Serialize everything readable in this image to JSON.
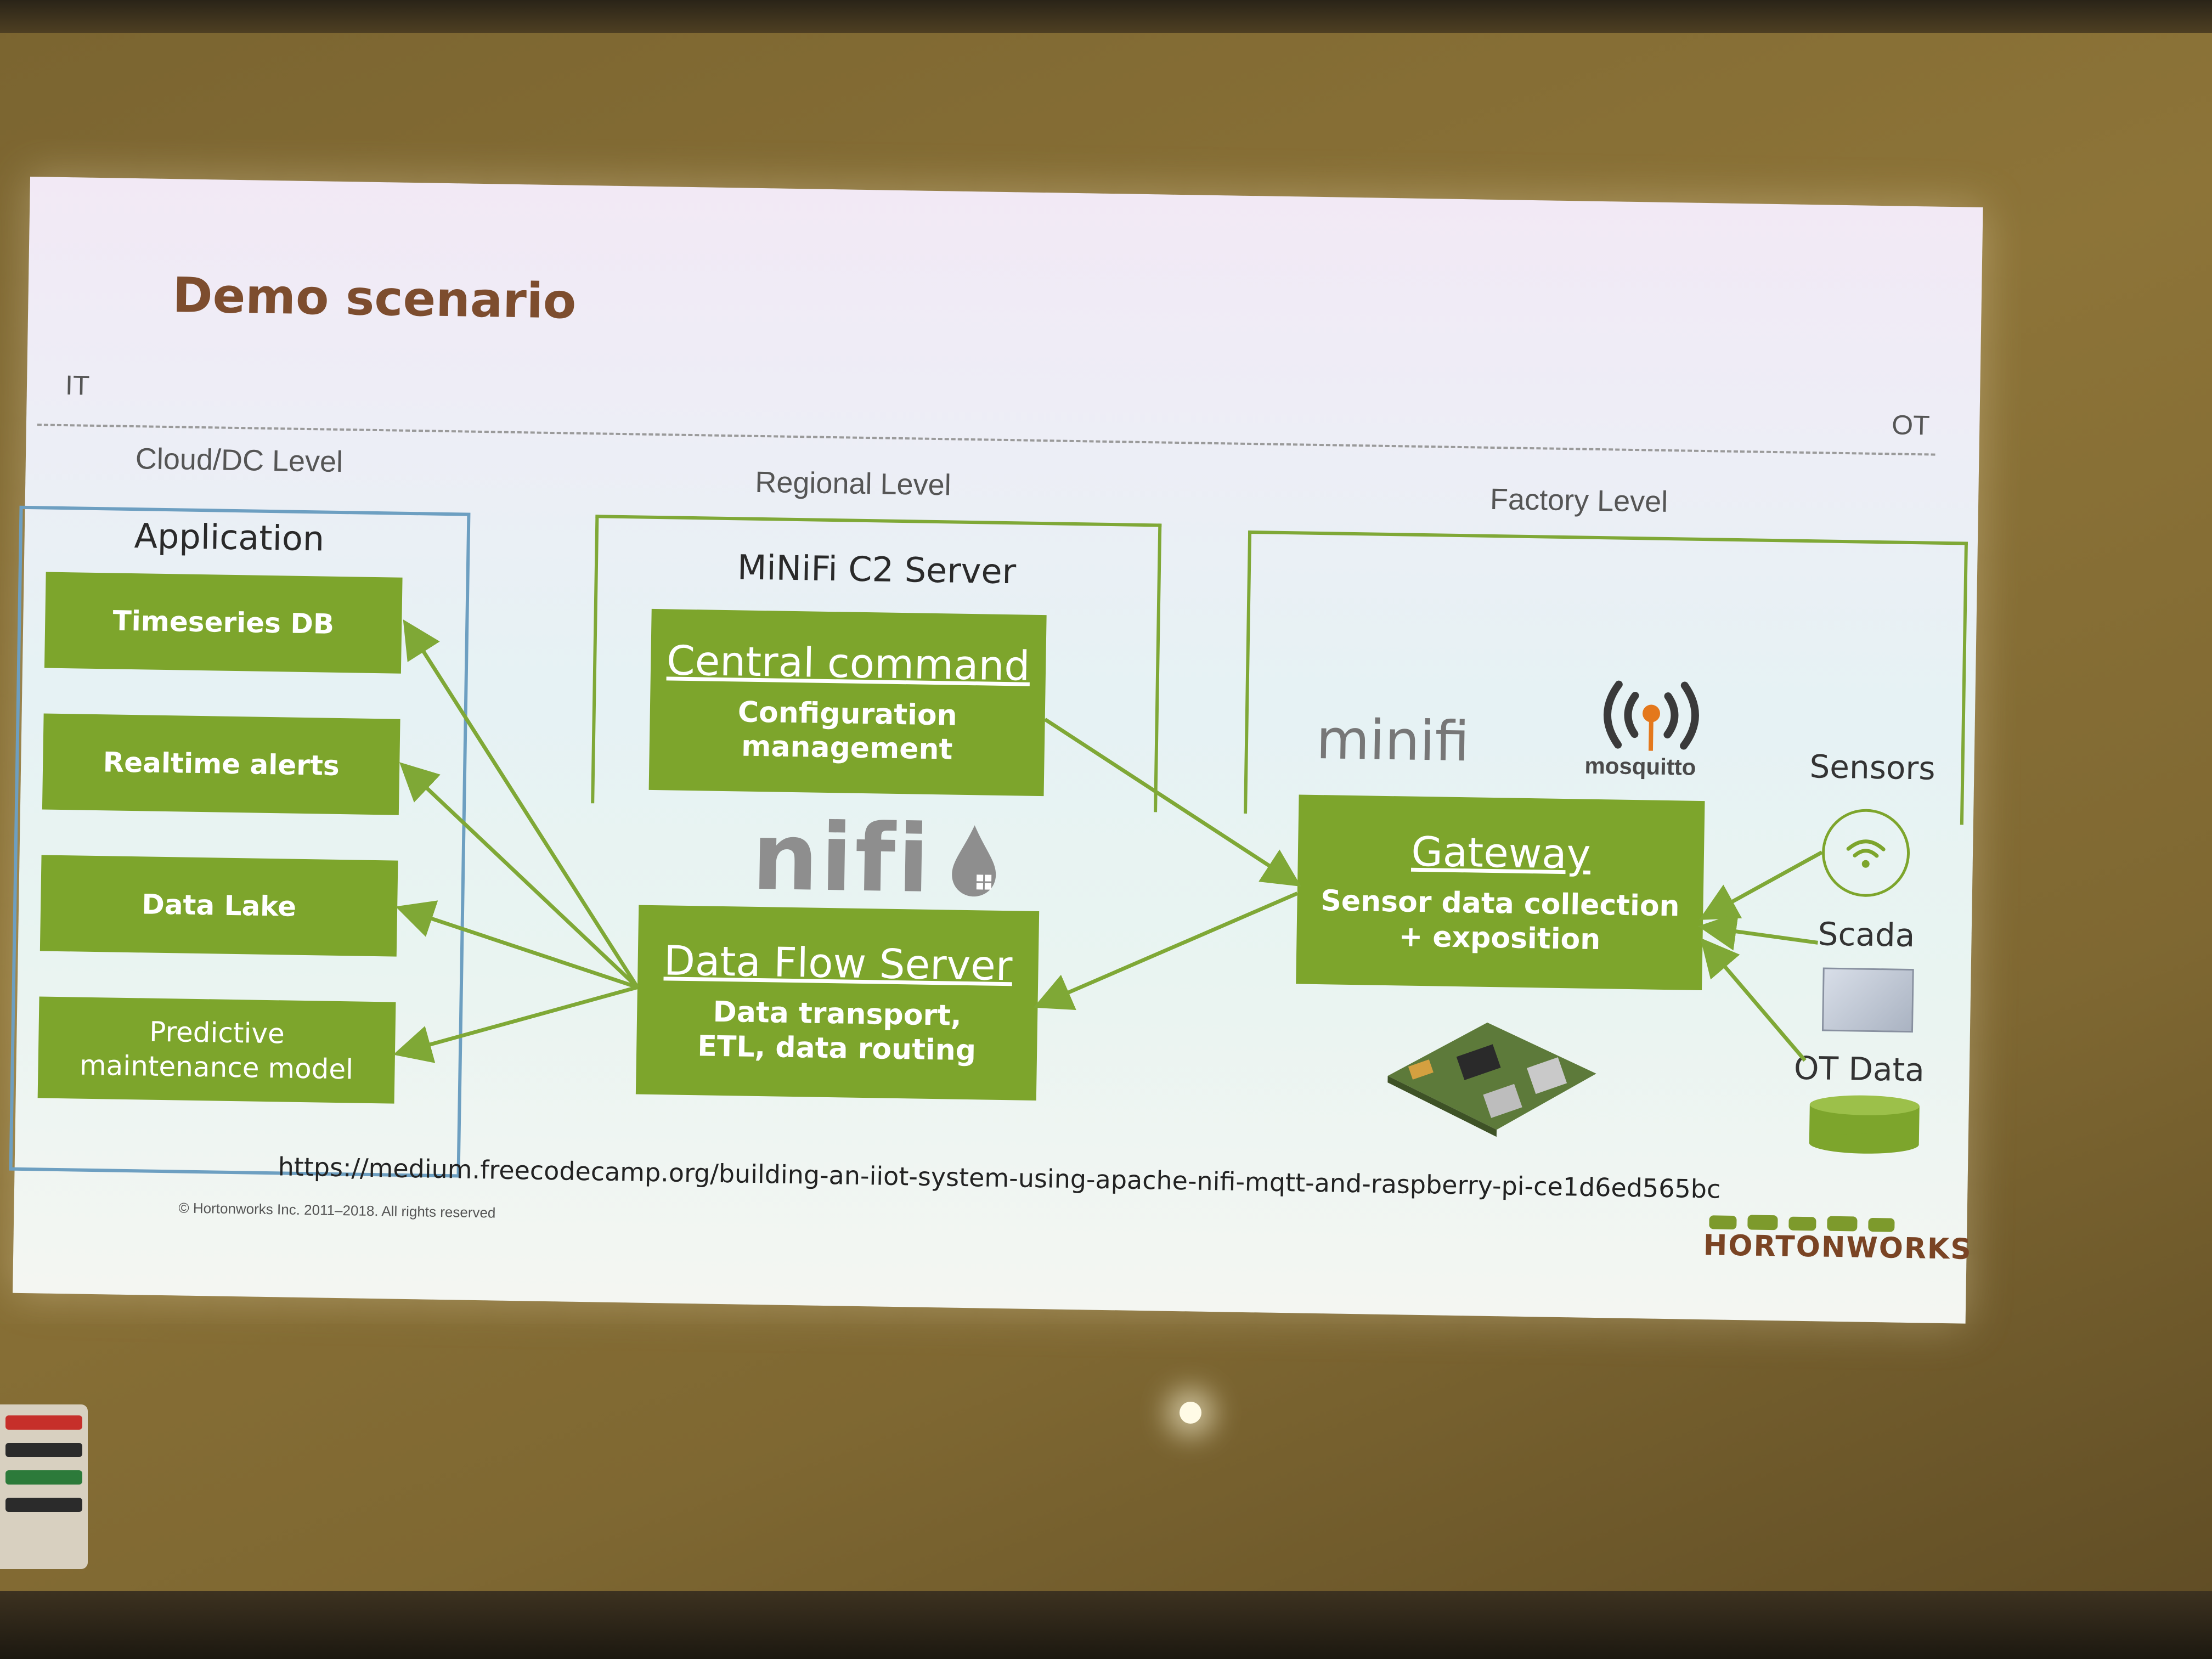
{
  "slide": {
    "title": "Demo scenario",
    "left_tag": "IT",
    "right_tag": "OT",
    "levels": {
      "cloud": "Cloud/DC Level",
      "regional": "Regional Level",
      "factory": "Factory Level"
    }
  },
  "cloud": {
    "title": "Application",
    "items": [
      "Timeseries DB",
      "Realtime alerts",
      "Data Lake",
      "Predictive maintenance model"
    ]
  },
  "regional": {
    "title": "MiNiFi C2 Server",
    "central_command": {
      "title": "Central command",
      "subtitle": "Configuration management"
    },
    "nifi_logo": "nifi",
    "data_flow_server": {
      "title": "Data Flow Server",
      "subtitle": "Data transport, ETL, data routing"
    }
  },
  "factory": {
    "minifi_logo": "minifi",
    "mosquitto_logo": "mosquitto",
    "gateway": {
      "title": "Gateway",
      "subtitle": "Sensor data collection + exposition"
    },
    "sources": [
      "Sensors",
      "Scada",
      "OT Data"
    ]
  },
  "footer": {
    "url": "https://medium.freecodecamp.org/building-an-iiot-system-using-apache-nifi-mqtt-and-raspberry-pi-ce1d6ed565bc",
    "copyright": "© Hortonworks Inc. 2011–2018. All rights reserved",
    "brand": "HORTONWORKS"
  },
  "colors": {
    "box_green": "#7da52c",
    "title_brown": "#7d4d2e",
    "arrow_green": "#7fa836",
    "cloud_border": "#6d9fc1"
  },
  "icons": [
    "nifi-drop-icon",
    "mosquitto-antenna-icon",
    "wifi-icon",
    "scada-image",
    "database-cylinder-icon",
    "raspberry-pi-board-image"
  ]
}
